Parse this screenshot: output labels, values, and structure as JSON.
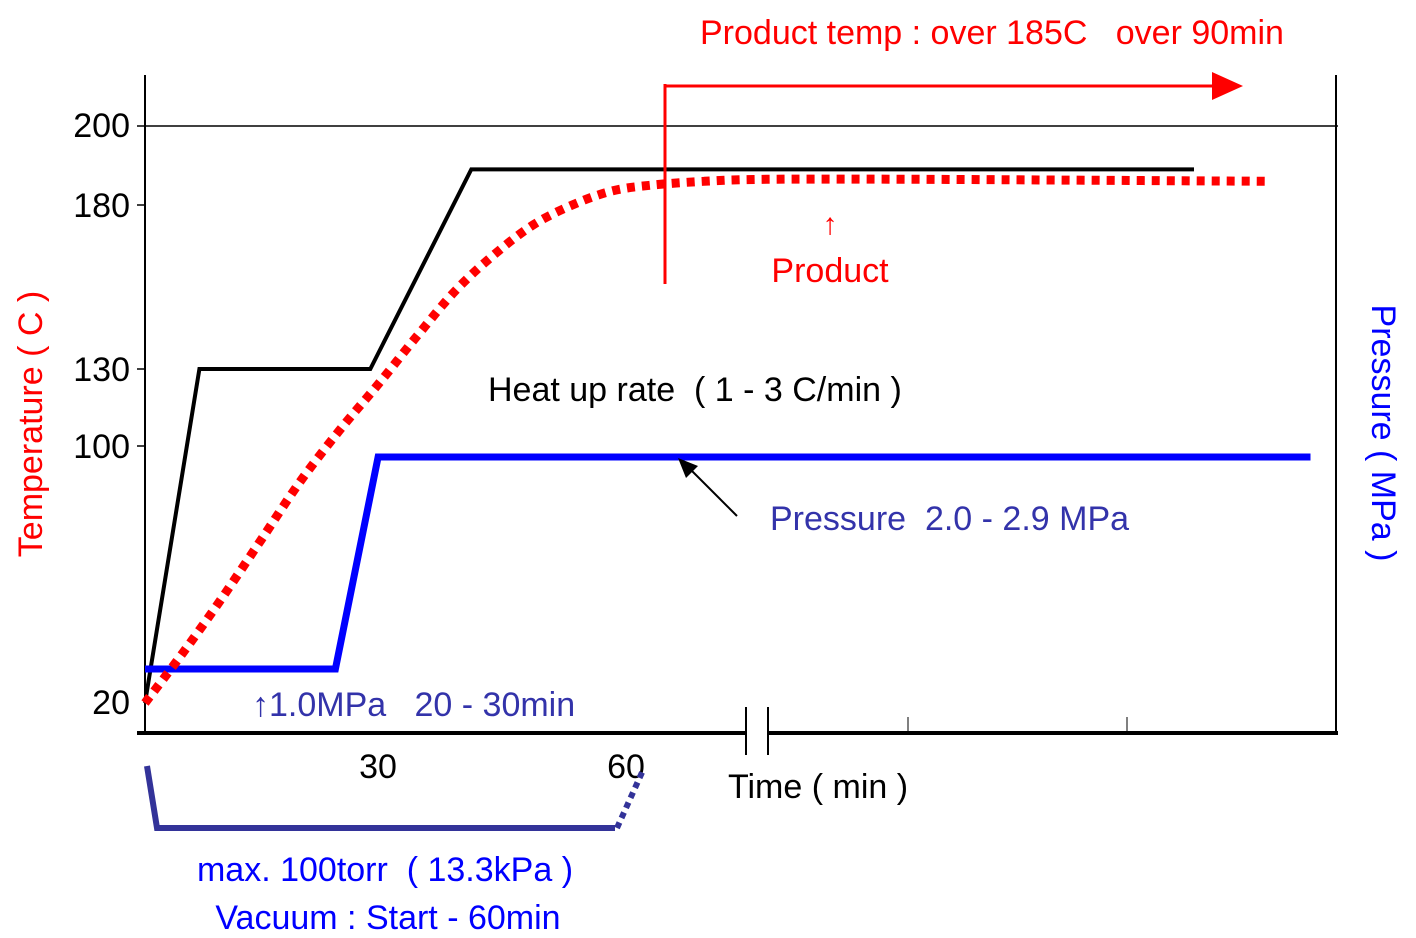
{
  "chart_data": {
    "type": "line",
    "y_axis": {
      "label": "Temperature ( C )",
      "ticks": [
        20,
        100,
        130,
        180,
        200
      ],
      "range": [
        20,
        200
      ],
      "color": "#ff0000"
    },
    "y2_axis": {
      "label": "Pressure ( MPa )",
      "color": "#0000ff"
    },
    "x_axis": {
      "label": "Time ( min )",
      "ticks": [
        30,
        60
      ],
      "range": [
        0,
        150
      ]
    },
    "series": [
      {
        "name": "",
        "color": "#000000",
        "style": "solid",
        "axis": "temperature",
        "points": [
          [
            0,
            20
          ],
          [
            7,
            130
          ],
          [
            29,
            130
          ],
          [
            42,
            189
          ],
          [
            135,
            189
          ]
        ]
      },
      {
        "name": "Product",
        "color": "#ff0000",
        "style": "dotted",
        "axis": "temperature",
        "points": [
          [
            0,
            20
          ],
          [
            5,
            36
          ],
          [
            10,
            53
          ],
          [
            15,
            71
          ],
          [
            20,
            89
          ],
          [
            25,
            106
          ],
          [
            30,
            124
          ],
          [
            35,
            140
          ],
          [
            40,
            154
          ],
          [
            45,
            165
          ],
          [
            50,
            174
          ],
          [
            55,
            180
          ],
          [
            60,
            183.5
          ],
          [
            65,
            185
          ],
          [
            72,
            186
          ],
          [
            80,
            186.5
          ],
          [
            100,
            186.5
          ],
          [
            145,
            186
          ]
        ]
      },
      {
        "name": "",
        "color": "#0000ff",
        "style": "solid",
        "axis": "pressure",
        "points": [
          [
            0,
            1.0
          ],
          [
            24.5,
            1.0
          ],
          [
            30,
            2.6
          ],
          [
            150,
            2.6
          ]
        ]
      }
    ],
    "annotations": {
      "product_temp": "Product temp : over 185C   over 90min",
      "product_label": "Product",
      "heat_up": "Heat up rate  ( 1 - 3 C/min )",
      "pressure": "Pressure  2.0 - 2.9 MPa",
      "initial_pressure": "↑1.0MPa   20 - 30min",
      "vacuum_line1": "max. 100torr  ( 13.3kPa )",
      "vacuum_line2": "Vacuum : Start - 60min",
      "up_arrow": "↑"
    },
    "colors": {
      "temperature": "#ff0000",
      "pressure": "#0000ff",
      "pressure_text": "#3333aa",
      "vacuum": "#333399",
      "axes": "#000000"
    }
  }
}
